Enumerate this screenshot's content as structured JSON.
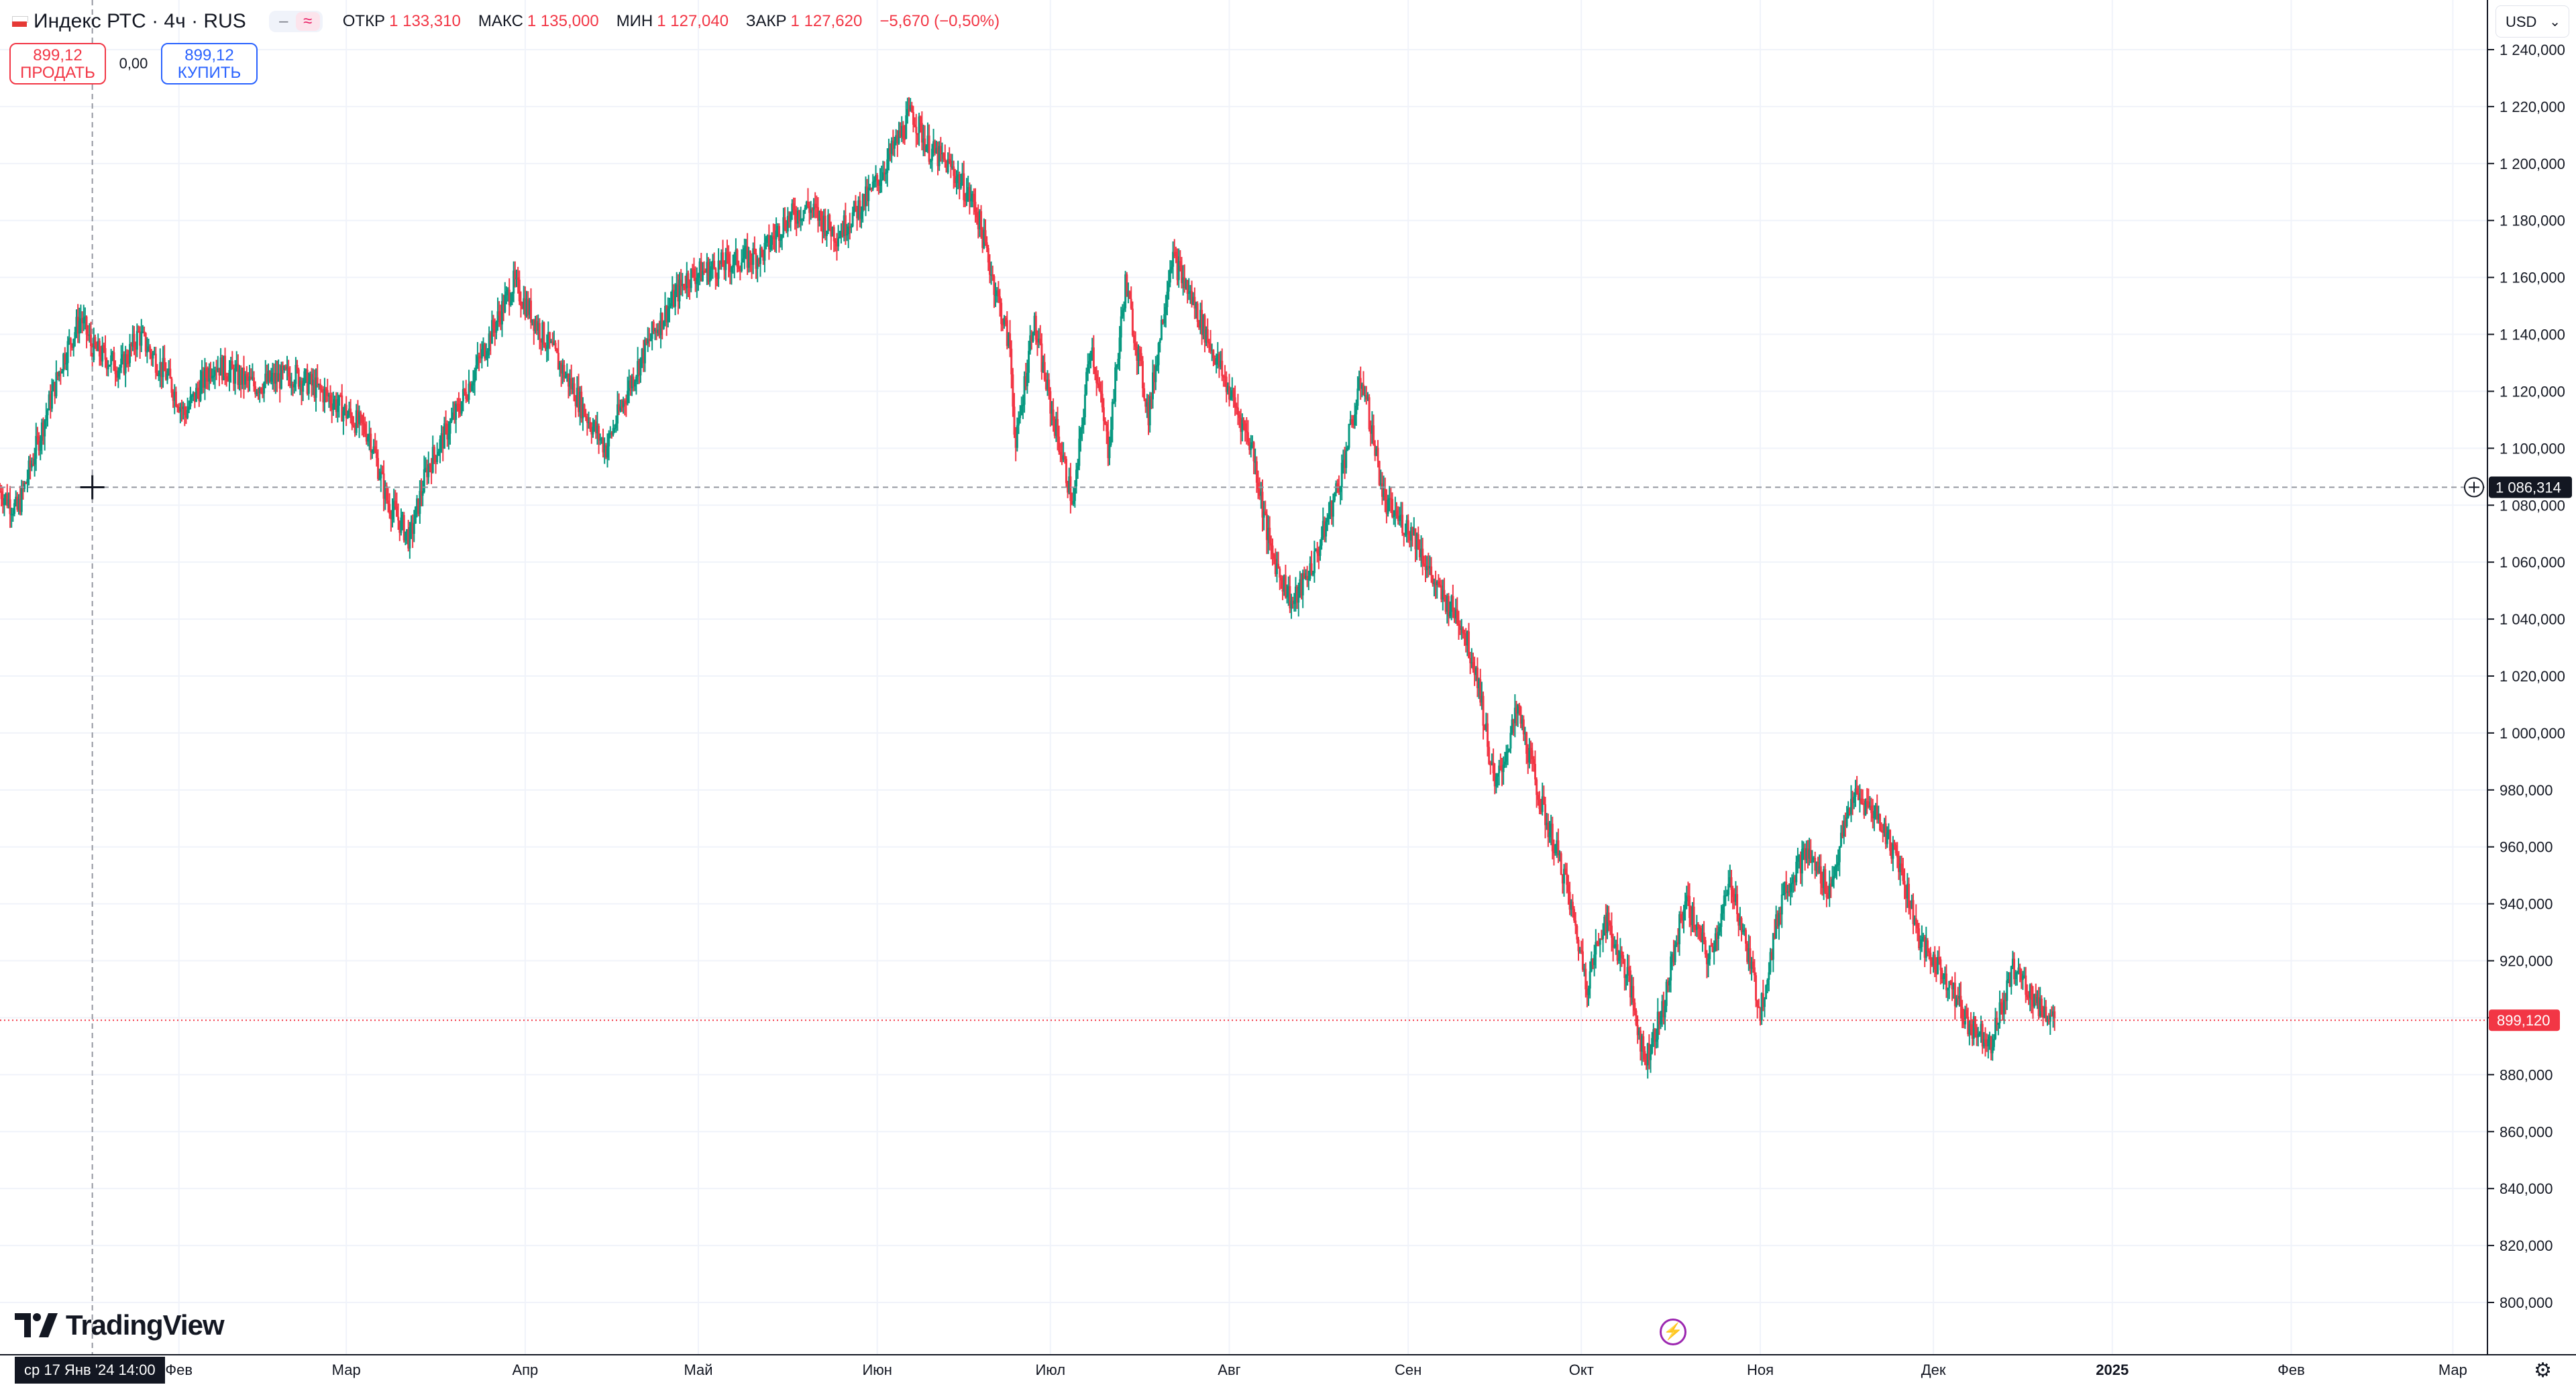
{
  "legend": {
    "symbol": "Индекс РТС · 4ч · RUS",
    "toggle_a": "–",
    "toggle_b": "≈",
    "open_label": "ОТКР",
    "open": "1 133,310",
    "high_label": "МАКС",
    "high": "1 135,000",
    "low_label": "МИН",
    "low": "1 127,040",
    "close_label": "ЗАКР",
    "close": "1 127,620",
    "change": "−5,670 (−0,50%)"
  },
  "trade": {
    "sell_price": "899,12",
    "sell_label": "ПРОДАТЬ",
    "spread": "0,00",
    "buy_price": "899,12",
    "buy_label": "КУПИТЬ"
  },
  "currency": "USD",
  "crosshair_label": "ср 17 Янв '24   14:00",
  "logo": "TradingView",
  "colors": {
    "up": "#089981",
    "down": "#f23645",
    "grid": "#f0f3fa",
    "crosshair": "#9598a1",
    "last_price": "#f23645"
  },
  "chart_data": {
    "type": "candlestick",
    "ylim": [
      790000,
      1245000
    ],
    "y_ticks": [
      "1 240,000",
      "1 220,000",
      "1 200,000",
      "1 180,000",
      "1 160,000",
      "1 140,000",
      "1 120,000",
      "1 100,000",
      "1 080,000",
      "1 060,000",
      "1 040,000",
      "1 020,000",
      "1 000,000",
      "980,000",
      "960,000",
      "940,000",
      "920,000",
      "900,000",
      "880,000",
      "860,000",
      "840,000",
      "820,000",
      "800,000"
    ],
    "x_labels": [
      {
        "label": "Фев",
        "date": "2024-02-01"
      },
      {
        "label": "Мар",
        "date": "2024-03-01"
      },
      {
        "label": "Апр",
        "date": "2024-04-01"
      },
      {
        "label": "Май",
        "date": "2024-05-01"
      },
      {
        "label": "Июн",
        "date": "2024-06-01"
      },
      {
        "label": "Июл",
        "date": "2024-07-01"
      },
      {
        "label": "Авг",
        "date": "2024-08-01"
      },
      {
        "label": "Сен",
        "date": "2024-09-01"
      },
      {
        "label": "Окт",
        "date": "2024-10-01"
      },
      {
        "label": "Ноя",
        "date": "2024-11-01"
      },
      {
        "label": "Дек",
        "date": "2024-12-01"
      },
      {
        "label": "2025",
        "date": "2025-01-01"
      },
      {
        "label": "Фев",
        "date": "2025-02-01"
      },
      {
        "label": "Мар",
        "date": "2025-03-01"
      }
    ],
    "x_start": "2024-01-01",
    "x_end": "2025-03-07",
    "last_price": 899120,
    "last_price_label": "899,120",
    "crosshair_price": 1086314,
    "crosshair_price_label": "1 086,314",
    "crosshair_date": "2024-01-17",
    "anchors": [
      [
        "2024-01-01",
        1085000
      ],
      [
        "2024-01-04",
        1078000
      ],
      [
        "2024-01-09",
        1112000
      ],
      [
        "2024-01-12",
        1132000
      ],
      [
        "2024-01-15",
        1146000
      ],
      [
        "2024-01-17",
        1135000
      ],
      [
        "2024-01-22",
        1128000
      ],
      [
        "2024-01-25",
        1140000
      ],
      [
        "2024-01-30",
        1125000
      ],
      [
        "2024-02-02",
        1112000
      ],
      [
        "2024-02-07",
        1130000
      ],
      [
        "2024-02-14",
        1122000
      ],
      [
        "2024-02-21",
        1126000
      ],
      [
        "2024-02-27",
        1118000
      ],
      [
        "2024-03-05",
        1105000
      ],
      [
        "2024-03-08",
        1082000
      ],
      [
        "2024-03-12",
        1068000
      ],
      [
        "2024-03-15",
        1093000
      ],
      [
        "2024-03-20",
        1112000
      ],
      [
        "2024-03-26",
        1140000
      ],
      [
        "2024-03-30",
        1158000
      ],
      [
        "2024-04-04",
        1140000
      ],
      [
        "2024-04-09",
        1122000
      ],
      [
        "2024-04-12",
        1110000
      ],
      [
        "2024-04-15",
        1100000
      ],
      [
        "2024-04-19",
        1122000
      ],
      [
        "2024-04-23",
        1140000
      ],
      [
        "2024-04-29",
        1160000
      ],
      [
        "2024-05-06",
        1165000
      ],
      [
        "2024-05-12",
        1168000
      ],
      [
        "2024-05-16",
        1180000
      ],
      [
        "2024-05-20",
        1185000
      ],
      [
        "2024-05-25",
        1175000
      ],
      [
        "2024-05-31",
        1190000
      ],
      [
        "2024-06-05",
        1210000
      ],
      [
        "2024-06-07",
        1218000
      ],
      [
        "2024-06-10",
        1205000
      ],
      [
        "2024-06-14",
        1198000
      ],
      [
        "2024-06-18",
        1185000
      ],
      [
        "2024-06-21",
        1160000
      ],
      [
        "2024-06-24",
        1135000
      ],
      [
        "2024-06-25",
        1100000
      ],
      [
        "2024-06-28",
        1145000
      ],
      [
        "2024-07-01",
        1115000
      ],
      [
        "2024-07-05",
        1080000
      ],
      [
        "2024-07-08",
        1138000
      ],
      [
        "2024-07-11",
        1100000
      ],
      [
        "2024-07-14",
        1158000
      ],
      [
        "2024-07-18",
        1112000
      ],
      [
        "2024-07-22",
        1168000
      ],
      [
        "2024-07-26",
        1150000
      ],
      [
        "2024-08-01",
        1120000
      ],
      [
        "2024-08-05",
        1100000
      ],
      [
        "2024-08-08",
        1065000
      ],
      [
        "2024-08-12",
        1045000
      ],
      [
        "2024-08-16",
        1062000
      ],
      [
        "2024-08-20",
        1088000
      ],
      [
        "2024-08-24",
        1125000
      ],
      [
        "2024-08-28",
        1080000
      ],
      [
        "2024-09-02",
        1070000
      ],
      [
        "2024-09-06",
        1050000
      ],
      [
        "2024-09-10",
        1040000
      ],
      [
        "2024-09-13",
        1020000
      ],
      [
        "2024-09-16",
        980000
      ],
      [
        "2024-09-20",
        1008000
      ],
      [
        "2024-09-24",
        975000
      ],
      [
        "2024-09-28",
        950000
      ],
      [
        "2024-10-02",
        912000
      ],
      [
        "2024-10-05",
        935000
      ],
      [
        "2024-10-09",
        915000
      ],
      [
        "2024-10-12",
        885000
      ],
      [
        "2024-10-15",
        902000
      ],
      [
        "2024-10-19",
        942000
      ],
      [
        "2024-10-23",
        920000
      ],
      [
        "2024-10-27",
        948000
      ],
      [
        "2024-11-01",
        903000
      ],
      [
        "2024-11-05",
        945000
      ],
      [
        "2024-11-09",
        958000
      ],
      [
        "2024-11-13",
        945000
      ],
      [
        "2024-11-17",
        978000
      ],
      [
        "2024-11-21",
        972000
      ],
      [
        "2024-11-25",
        955000
      ],
      [
        "2024-11-29",
        925000
      ],
      [
        "2024-12-03",
        915000
      ],
      [
        "2024-12-07",
        898000
      ],
      [
        "2024-12-11",
        892000
      ],
      [
        "2024-12-15",
        918000
      ],
      [
        "2024-12-19",
        905000
      ],
      [
        "2024-12-22",
        899120
      ]
    ]
  }
}
